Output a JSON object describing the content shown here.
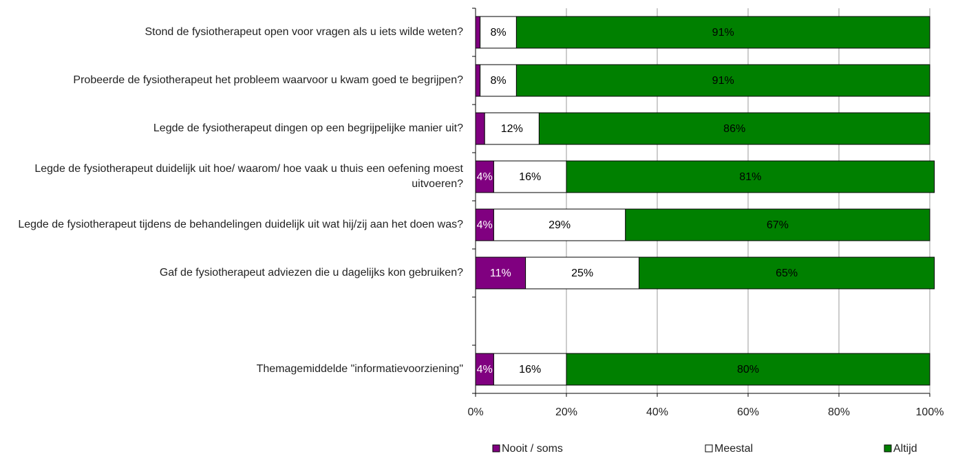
{
  "chart_data": {
    "type": "stacked-barh",
    "categories": [
      "Stond de fysiotherapeut open voor vragen als u iets wilde weten?",
      "Probeerde de fysiotherapeut het probleem waarvoor u kwam goed te begrijpen?",
      "Legde de fysiotherapeut dingen op een begrijpelijke manier uit?",
      "Legde de fysiotherapeut duidelijk uit hoe/ waarom/ hoe vaak u thuis een oefening moest uitvoeren?",
      "Legde de fysiotherapeut tijdens de behandelingen duidelijk uit wat hij/zij aan het doen was?",
      "Gaf de fysiotherapeut adviezen die u dagelijks kon gebruiken?",
      null,
      "Themagemiddelde \"informatievoorziening\""
    ],
    "series": [
      {
        "name": "Nooit / soms",
        "color": "#800080",
        "label_color": "#ffffff",
        "values": [
          1,
          1,
          2,
          4,
          4,
          11,
          null,
          4
        ],
        "value_labels": [
          null,
          null,
          null,
          "4%",
          "4%",
          "11%",
          null,
          "4%"
        ]
      },
      {
        "name": "Meestal",
        "color": "#ffffff",
        "label_color": "#000000",
        "values": [
          8,
          8,
          12,
          16,
          29,
          25,
          null,
          16
        ],
        "value_labels": [
          "8%",
          "8%",
          "12%",
          "16%",
          "29%",
          "25%",
          null,
          "16%"
        ]
      },
      {
        "name": "Altijd",
        "color": "#008000",
        "label_color": "#000000",
        "values": [
          91,
          91,
          86,
          81,
          67,
          65,
          null,
          80
        ],
        "value_labels": [
          "91%",
          "91%",
          "86%",
          "81%",
          "67%",
          "65%",
          null,
          "80%"
        ]
      }
    ],
    "xlim": [
      0,
      100
    ],
    "xticks": [
      {
        "value": 0,
        "label": "0%"
      },
      {
        "value": 20,
        "label": "20%"
      },
      {
        "value": 40,
        "label": "40%"
      },
      {
        "value": 60,
        "label": "60%"
      },
      {
        "value": 80,
        "label": "80%"
      },
      {
        "value": 100,
        "label": "100%"
      }
    ],
    "grid": true
  }
}
